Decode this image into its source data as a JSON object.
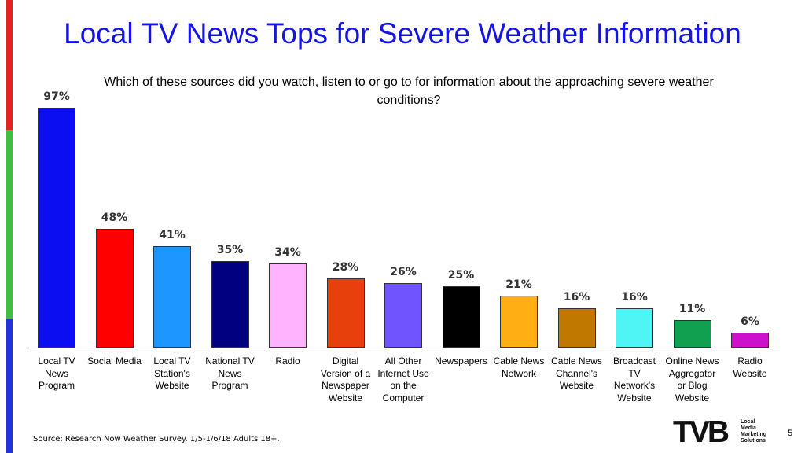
{
  "title": "Local TV News Tops for Severe Weather Information",
  "subtitle": "Which of these sources did you watch, listen to or go to for information about the approaching severe weather conditions?",
  "source": "Source: Research Now Weather Survey. 1/5-1/6/18 Adults 18+.",
  "page_number": "5",
  "logo": {
    "main": "TVB",
    "tagline": "Local\nMedia\nMarketing\nSolutions"
  },
  "accent_colors": [
    "#e52222",
    "#3fbf3f",
    "#2233dd"
  ],
  "chart_data": {
    "type": "bar",
    "title": "Local TV News Tops for Severe Weather Information",
    "subtitle": "Which of these sources did you watch, listen to or go to for information about the approaching severe weather conditions?",
    "xlabel": "",
    "ylabel": "",
    "ylim": [
      0,
      100
    ],
    "grid": false,
    "categories": [
      "Local TV\nNews\nProgram",
      "Social Media",
      "Local TV\nStation's\nWebsite",
      "National TV\nNews\nProgram",
      "Radio",
      "Digital\nVersion of a\nNewspaper\nWebsite",
      "All Other\nInternet Use\non the\nComputer",
      "Newspapers",
      "Cable News\nNetwork",
      "Cable News\nChannel's\nWebsite",
      "Broadcast\nTV\nNetwork's\nWebsite",
      "Online News\nAggregator\nor Blog\nWebsite",
      "Radio\nWebsite"
    ],
    "values": [
      97,
      48,
      41,
      35,
      34,
      28,
      26,
      25,
      21,
      16,
      16,
      11,
      6
    ],
    "value_labels": [
      "97%",
      "48%",
      "41%",
      "35%",
      "34%",
      "28%",
      "26%",
      "25%",
      "21%",
      "16%",
      "16%",
      "11%",
      "6%"
    ],
    "colors": [
      "#0a0ef0",
      "#ff0000",
      "#1e96ff",
      "#000080",
      "#ffb3ff",
      "#e8400c",
      "#7055ff",
      "#000000",
      "#ffae14",
      "#c07800",
      "#4ff5f5",
      "#10a050",
      "#cc10cc"
    ]
  }
}
